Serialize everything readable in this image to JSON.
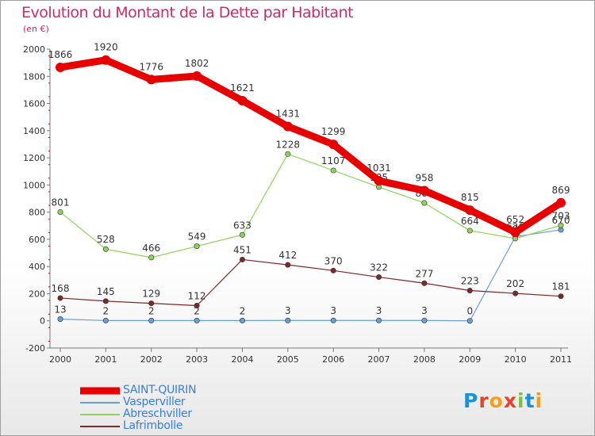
{
  "header": {
    "title": "Evolution du Montant de la Dette par Habitant",
    "subtitle": "(en €)"
  },
  "logo": {
    "text": "Proxiti",
    "letters": [
      "P",
      "r",
      "o",
      "x",
      "i",
      "t",
      "i"
    ],
    "colors": [
      "#1e90d6",
      "#e8432a",
      "#f0a020",
      "#e8432a",
      "#7cc243",
      "#1e90d6",
      "#f0a020"
    ]
  },
  "chart_data": {
    "type": "line",
    "x": [
      "2000",
      "2001",
      "2002",
      "2003",
      "2004",
      "2005",
      "2006",
      "2007",
      "2008",
      "2009",
      "2010",
      "2011"
    ],
    "ylim": [
      -200,
      2000
    ],
    "yticks": [
      "-200",
      "0",
      "200",
      "400",
      "600",
      "800",
      "1000",
      "1200",
      "1400",
      "1600",
      "1800",
      "2000"
    ],
    "grid": false,
    "legend_position": "bottom-left",
    "series": [
      {
        "name": "SAINT-QUIRIN",
        "color": "#e60000",
        "values": [
          1866,
          1920,
          1776,
          1802,
          1621,
          1431,
          1299,
          1031,
          958,
          815,
          652,
          869
        ],
        "labels": [
          "1866",
          "1920",
          "1776",
          "1802",
          "1621",
          "1431",
          "1299",
          "1031",
          "958",
          "815",
          "652",
          "869"
        ]
      },
      {
        "name": "Vasperviller",
        "color": "#6a9fd4",
        "values": [
          13,
          2,
          2,
          2,
          2,
          3,
          3,
          3,
          3,
          0,
          620,
          670
        ],
        "labels": [
          "13",
          "2",
          "2",
          "2",
          "2",
          "3",
          "3",
          "3",
          "3",
          "0",
          "620",
          "670"
        ]
      },
      {
        "name": "Abreschviller",
        "color": "#8fd45a",
        "values": [
          801,
          528,
          466,
          549,
          633,
          1228,
          1107,
          985,
          868,
          664,
          606,
          703
        ],
        "labels": [
          "801",
          "528",
          "466",
          "549",
          "633",
          "1228",
          "1107",
          "985",
          "868",
          "664",
          "606",
          "703"
        ]
      },
      {
        "name": "Lafrimbolle",
        "color": "#7a2a2a",
        "values": [
          168,
          145,
          129,
          112,
          451,
          412,
          370,
          322,
          277,
          223,
          202,
          181
        ],
        "labels": [
          "168",
          "145",
          "129",
          "112",
          "451",
          "412",
          "370",
          "322",
          "277",
          "223",
          "202",
          "181"
        ]
      }
    ]
  }
}
